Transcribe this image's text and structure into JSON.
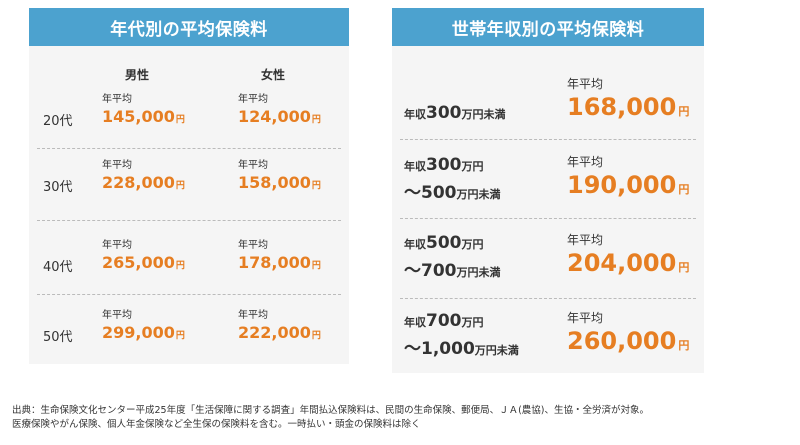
{
  "age_panel": {
    "title": "年代別の平均保険料",
    "col_male": "男性",
    "col_female": "女性",
    "avg_label": "年平均",
    "yen": "円",
    "rows": [
      {
        "age": "20代",
        "male": "145,000",
        "female": "124,000"
      },
      {
        "age": "30代",
        "male": "228,000",
        "female": "158,000"
      },
      {
        "age": "40代",
        "male": "265,000",
        "female": "178,000"
      },
      {
        "age": "50代",
        "male": "299,000",
        "female": "222,000"
      }
    ]
  },
  "income_panel": {
    "title": "世帯年収別の平均保険料",
    "avg_label": "年平均",
    "yen": "円",
    "rows": [
      {
        "line1_prefix": "年収",
        "line1_num": "300",
        "line1_suffix": "万円未満",
        "line2_prefix": "",
        "line2_num": "",
        "line2_suffix": "",
        "amount": "168,000"
      },
      {
        "line1_prefix": "年収",
        "line1_num": "300",
        "line1_suffix": "万円",
        "line2_prefix": "～",
        "line2_num": "500",
        "line2_suffix": "万円未満",
        "amount": "190,000"
      },
      {
        "line1_prefix": "年収",
        "line1_num": "500",
        "line1_suffix": "万円",
        "line2_prefix": "～",
        "line2_num": "700",
        "line2_suffix": "万円未満",
        "amount": "204,000"
      },
      {
        "line1_prefix": "年収",
        "line1_num": "700",
        "line1_suffix": "万円",
        "line2_prefix": "～",
        "line2_num": "1,000",
        "line2_suffix": "万円未満",
        "amount": "260,000"
      }
    ]
  },
  "footnote": {
    "line1": "出典：生命保険文化センター平成25年度「生活保障に関する調査」年間払込保険料は、民間の生命保険、郵便局、ＪＡ(農協)、生協・全労済が対象。",
    "line2": "医療保険やがん保険、個人年金保険など全生保の保険料を含む。一時払い・頭金の保険料は除く"
  }
}
